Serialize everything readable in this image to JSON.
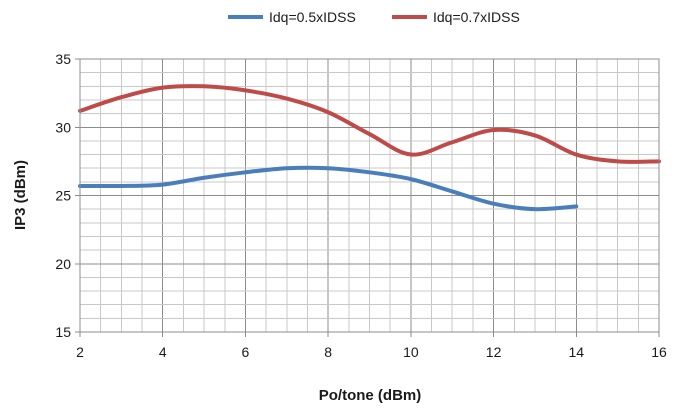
{
  "chart_data": {
    "type": "line",
    "title": "",
    "xlabel": "Po/tone (dBm)",
    "ylabel": "IP3 (dBm)",
    "xlim": [
      2,
      16
    ],
    "ylim": [
      15,
      35
    ],
    "x_ticks": [
      2,
      4,
      6,
      8,
      10,
      12,
      14,
      16
    ],
    "x_tick_labels": [
      "2",
      "4",
      "6",
      "8",
      "10",
      "12",
      "14",
      "16"
    ],
    "y_ticks": [
      15,
      20,
      25,
      30,
      35
    ],
    "y_tick_labels": [
      "15",
      "20",
      "25",
      "30",
      "35"
    ],
    "x_minor_step": 0.5,
    "y_minor_step": 1,
    "grid": true,
    "smooth": true,
    "legend_position": "top",
    "series": [
      {
        "name": "Idq=0.5xIDSS",
        "color": "#4a7ebb",
        "x": [
          2,
          3,
          4,
          5,
          6,
          7,
          8,
          9,
          10,
          11,
          12,
          13,
          14
        ],
        "y": [
          25.7,
          25.7,
          25.8,
          26.3,
          26.7,
          27.0,
          27.0,
          26.7,
          26.2,
          25.3,
          24.4,
          24.0,
          24.2
        ]
      },
      {
        "name": "Idq=0.7xIDSS",
        "color": "#be4b48",
        "x": [
          2,
          3,
          4,
          5,
          6,
          7,
          8,
          9,
          10,
          11,
          12,
          13,
          14,
          15,
          16
        ],
        "y": [
          31.2,
          32.2,
          32.9,
          33.0,
          32.7,
          32.1,
          31.1,
          29.5,
          28.0,
          28.9,
          29.8,
          29.4,
          28.0,
          27.5,
          27.5
        ]
      }
    ]
  }
}
